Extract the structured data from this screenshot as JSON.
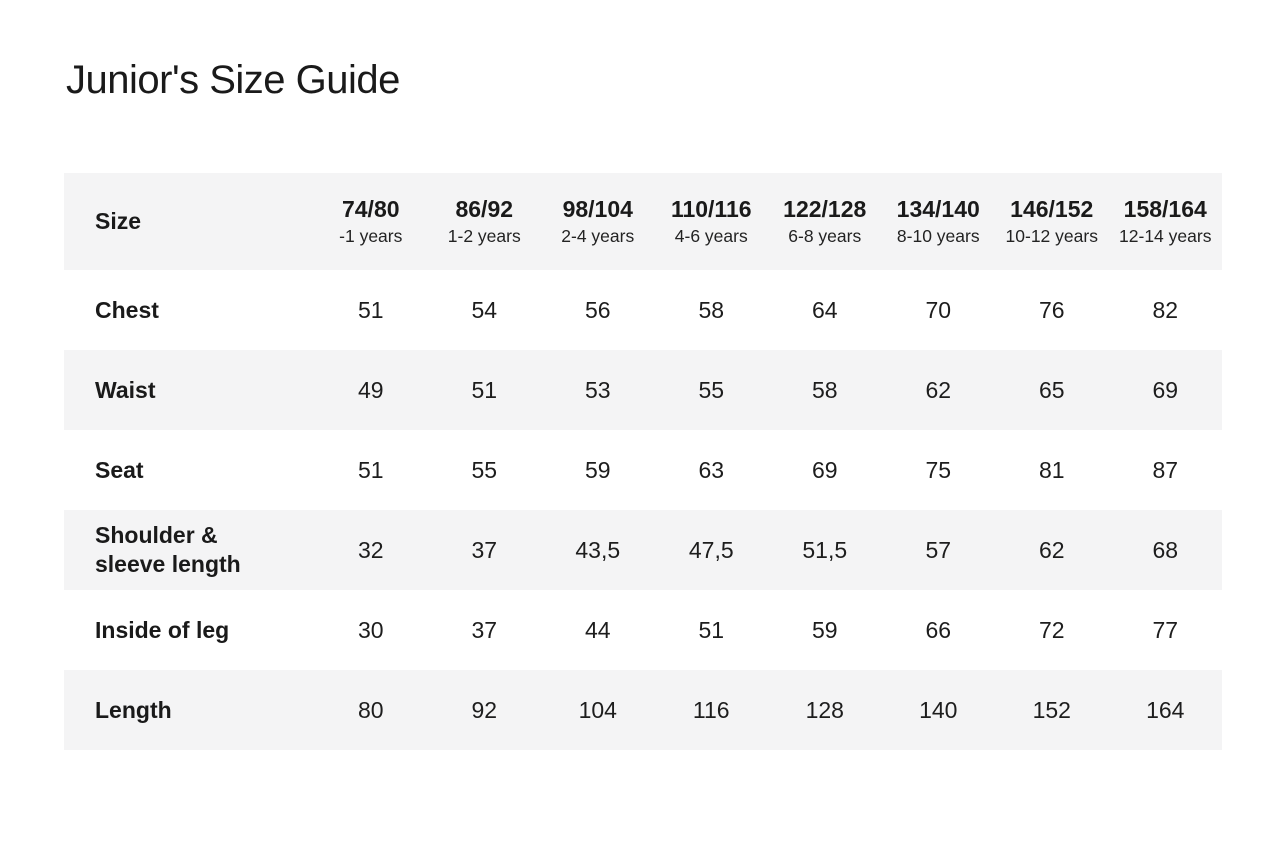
{
  "page": {
    "title": "Junior's Size Guide"
  },
  "colors": {
    "background": "#ffffff",
    "row_stripe": "#f4f4f5",
    "text": "#1d1d1d"
  },
  "table": {
    "header": {
      "label": "Size",
      "columns": [
        {
          "size": "74/80",
          "age": "-1 years"
        },
        {
          "size": "86/92",
          "age": "1-2 years"
        },
        {
          "size": "98/104",
          "age": "2-4 years"
        },
        {
          "size": "110/116",
          "age": "4-6 years"
        },
        {
          "size": "122/128",
          "age": "6-8 years"
        },
        {
          "size": "134/140",
          "age": "8-10 years"
        },
        {
          "size": "146/152",
          "age": "10-12 years"
        },
        {
          "size": "158/164",
          "age": "12-14 years"
        }
      ]
    },
    "rows": [
      {
        "label": "Chest",
        "values": [
          "51",
          "54",
          "56",
          "58",
          "64",
          "70",
          "76",
          "82"
        ]
      },
      {
        "label": "Waist",
        "values": [
          "49",
          "51",
          "53",
          "55",
          "58",
          "62",
          "65",
          "69"
        ]
      },
      {
        "label": "Seat",
        "values": [
          "51",
          "55",
          "59",
          "63",
          "69",
          "75",
          "81",
          "87"
        ]
      },
      {
        "label": "Shoulder &\nsleeve length",
        "values": [
          "32",
          "37",
          "43,5",
          "47,5",
          "51,5",
          "57",
          "62",
          "68"
        ]
      },
      {
        "label": "Inside of leg",
        "values": [
          "30",
          "37",
          "44",
          "51",
          "59",
          "66",
          "72",
          "77"
        ]
      },
      {
        "label": "Length",
        "values": [
          "80",
          "92",
          "104",
          "116",
          "128",
          "140",
          "152",
          "164"
        ]
      }
    ]
  }
}
